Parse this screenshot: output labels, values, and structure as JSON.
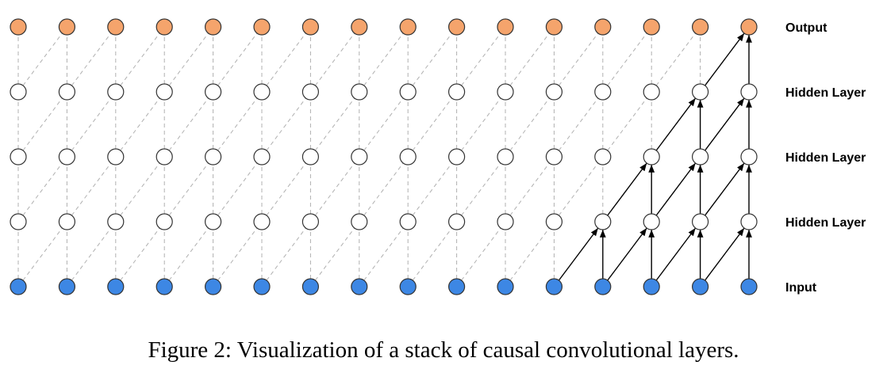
{
  "diagram": {
    "columns": 16,
    "layers": [
      {
        "label": "Output",
        "role": "output",
        "fill": "#f5a46c"
      },
      {
        "label": "Hidden Layer",
        "role": "hidden",
        "fill": "#ffffff"
      },
      {
        "label": "Hidden Layer",
        "role": "hidden",
        "fill": "#ffffff"
      },
      {
        "label": "Hidden Layer",
        "role": "hidden",
        "fill": "#ffffff"
      },
      {
        "label": "Input",
        "role": "input",
        "fill": "#3d87e4"
      }
    ],
    "highlighted_output_column": 16,
    "colors": {
      "node_stroke": "#333333",
      "dashed_edge": "#b0b0b0",
      "solid_edge": "#000000"
    }
  },
  "caption": "Figure 2: Visualization of a stack of causal convolutional layers."
}
